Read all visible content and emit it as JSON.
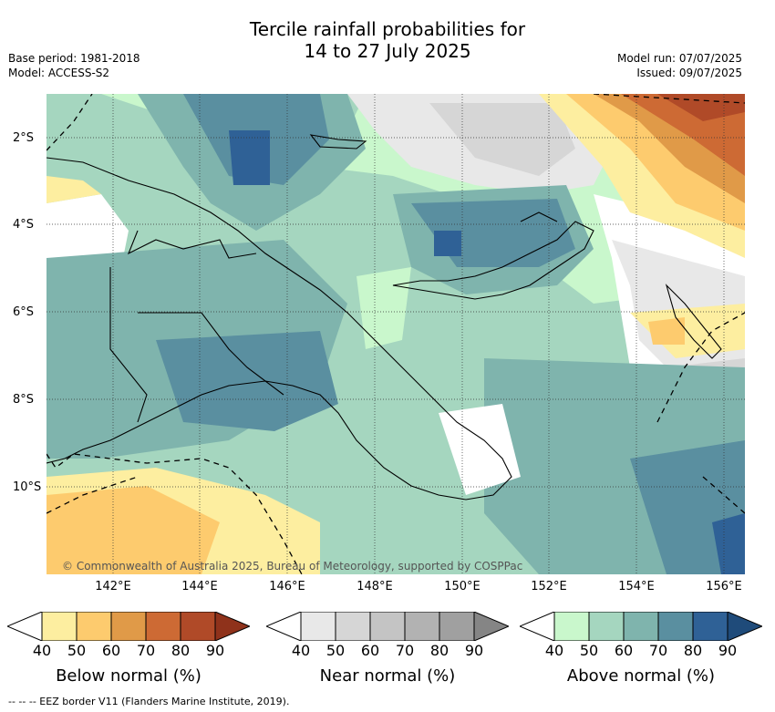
{
  "title_line1": "Tercile rainfall probabilities for",
  "title_line2": "14 to 27 July 2025",
  "base_period": "Base period: 1981-2018",
  "model": "Model: ACCESS-S2",
  "model_run": "Model run: 07/07/2025",
  "issued": "Issued: 09/07/2025",
  "lat_ticks": [
    "2°S",
    "4°S",
    "6°S",
    "8°S",
    "10°S"
  ],
  "lon_ticks": [
    "142°E",
    "144°E",
    "146°E",
    "148°E",
    "150°E",
    "152°E",
    "154°E",
    "156°E"
  ],
  "copyright": "© Commonwealth of Australia 2025, Bureau of Meteorology, supported by COSPPac",
  "colorbars": [
    {
      "label": "Below normal (%)",
      "ticks": [
        "40",
        "50",
        "60",
        "70",
        "80",
        "90"
      ],
      "colors": [
        "#ffffff",
        "#fdeea0",
        "#fdcb6e",
        "#e09a48",
        "#cd6a34",
        "#b04a28",
        "#8f321b"
      ]
    },
    {
      "label": "Near normal (%)",
      "ticks": [
        "40",
        "50",
        "60",
        "70",
        "80",
        "90"
      ],
      "colors": [
        "#ffffff",
        "#e8e8e8",
        "#d6d6d6",
        "#c4c4c4",
        "#b2b2b2",
        "#a0a0a0",
        "#858585"
      ]
    },
    {
      "label": "Above normal (%)",
      "ticks": [
        "40",
        "50",
        "60",
        "70",
        "80",
        "90"
      ],
      "colors": [
        "#ffffff",
        "#c9f7cc",
        "#a5d6bf",
        "#7fb4ad",
        "#5a8fa0",
        "#2f6196",
        "#1f4b7a"
      ]
    }
  ],
  "footer": "-- -- -- EEZ border V11 (Flanders Marine Institute, 2019)."
}
